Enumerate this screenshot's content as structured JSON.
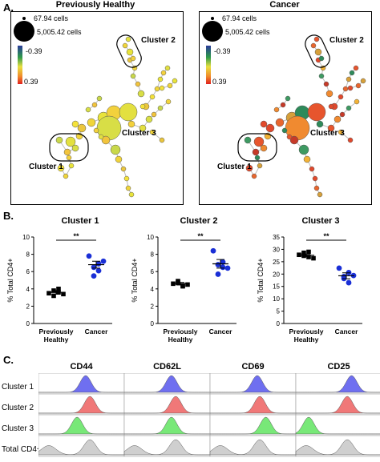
{
  "panel_a": {
    "letter": "A.",
    "trees": [
      {
        "title": "Previously Healthy"
      },
      {
        "title": "Cancer"
      }
    ],
    "legend": {
      "small_cells": "67.94 cells",
      "large_cells": "5,005.42 cells",
      "scale_top": "-0.39",
      "scale_bottom": "0.39"
    },
    "cluster_labels": [
      "Cluster 2",
      "Cluster 3",
      "Cluster 1"
    ]
  },
  "panel_b": {
    "letter": "B.",
    "sig": "**",
    "ylabel": "% Total CD4+",
    "xcats": [
      [
        "Previously",
        "Healthy"
      ],
      [
        "Cancer"
      ]
    ]
  },
  "panel_c": {
    "letter": "C.",
    "markers": [
      "CD44",
      "CD62L",
      "CD69",
      "CD25"
    ],
    "rows": [
      "Cluster 1",
      "Cluster 2",
      "Cluster 3",
      "Total CD4+"
    ],
    "colors": [
      "#6f6ff0",
      "#f07878",
      "#78e878",
      "#cfcfcf"
    ],
    "peaks": [
      [
        0.55,
        0.55,
        0.55,
        0.65
      ],
      [
        0.6,
        0.6,
        0.58,
        0.6
      ],
      [
        0.45,
        0.55,
        0.65,
        0.15
      ],
      [
        0.6,
        0.6,
        0.58,
        0.6
      ]
    ]
  },
  "chart_data": [
    {
      "type": "scatter",
      "title": "Cluster 1",
      "ylabel": "% Total CD4+",
      "categories": [
        "Previously Healthy",
        "Cancer"
      ],
      "ylim": [
        0,
        10
      ],
      "yticks": [
        0,
        2,
        4,
        6,
        8,
        10
      ],
      "series": [
        {
          "values": [
            3.5,
            3.8,
            4.0,
            3.2,
            3.6,
            3.4
          ]
        },
        {
          "values": [
            7.8,
            6.5,
            6.9,
            5.5,
            6.1,
            7.2
          ]
        }
      ],
      "means": [
        3.6,
        6.8
      ],
      "sem": [
        0.2,
        0.4
      ],
      "significance": "**"
    },
    {
      "type": "scatter",
      "title": "Cluster 2",
      "ylabel": "% Total CD4+",
      "categories": [
        "Previously Healthy",
        "Cancer"
      ],
      "ylim": [
        0,
        10
      ],
      "yticks": [
        0,
        2,
        4,
        6,
        8,
        10
      ],
      "series": [
        {
          "values": [
            4.6,
            4.9,
            4.4,
            4.7,
            4.3,
            4.5
          ]
        },
        {
          "values": [
            8.4,
            6.8,
            7.1,
            5.7,
            6.5,
            6.4
          ]
        }
      ],
      "means": [
        4.6,
        6.9
      ],
      "sem": [
        0.15,
        0.5
      ],
      "significance": "**"
    },
    {
      "type": "scatter",
      "title": "Cluster 3",
      "ylabel": "% Total CD4+",
      "categories": [
        "Previously Healthy",
        "Cancer"
      ],
      "ylim": [
        0,
        35
      ],
      "yticks": [
        0,
        5,
        10,
        15,
        20,
        25,
        30,
        35
      ],
      "series": [
        {
          "values": [
            27.8,
            28.6,
            26.9,
            27.4,
            29.0,
            26.4
          ]
        },
        {
          "values": [
            22.4,
            19.0,
            20.6,
            18.2,
            16.5,
            19.4
          ]
        }
      ],
      "means": [
        27.6,
        19.3
      ],
      "sem": [
        0.5,
        1.2
      ],
      "significance": "**"
    }
  ]
}
